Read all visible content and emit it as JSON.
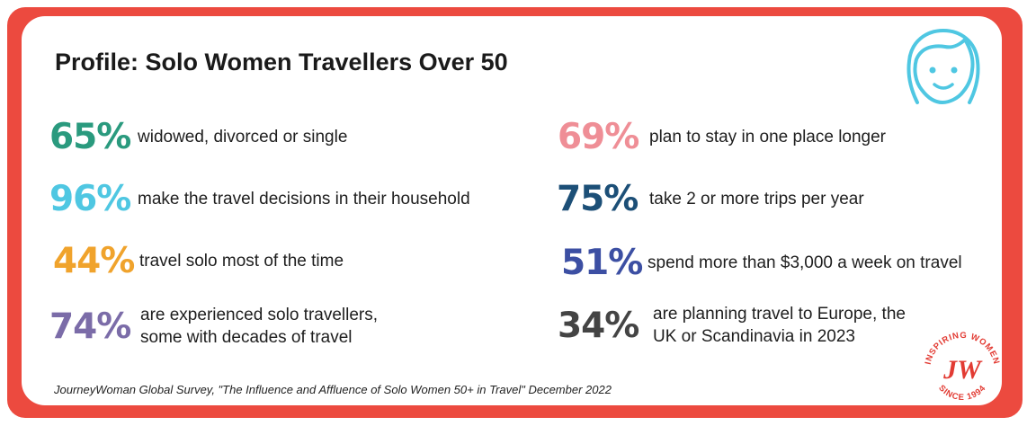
{
  "title": "Profile: Solo Women Travellers Over 50",
  "colors": {
    "frame": "#ec4a3f",
    "teal": "#2a9a7e",
    "sky": "#4fc7e2",
    "orange": "#f0a32c",
    "purple": "#7b6ca8",
    "pink": "#ef8e96",
    "navy": "#1c4f77",
    "indigo": "#3c4fa3",
    "charcoal": "#444444"
  },
  "stats": [
    {
      "pct": "65%",
      "text": [
        "widowed, divorced or single"
      ]
    },
    {
      "pct": "96%",
      "text": [
        "make the travel decisions  in their household"
      ]
    },
    {
      "pct": "44%",
      "text": [
        "travel solo most of the time"
      ]
    },
    {
      "pct": "74%",
      "text": [
        "are experienced solo travellers,",
        "some with decades of travel"
      ]
    },
    {
      "pct": "69%",
      "text": [
        "plan to stay in one place longer"
      ]
    },
    {
      "pct": "75%",
      "text": [
        "take 2 or more trips per year"
      ]
    },
    {
      "pct": "51%",
      "text": [
        "spend more than $3,000 a week on travel"
      ]
    },
    {
      "pct": "34%",
      "text": [
        "are planning travel to Europe, the",
        "UK or Scandinavia in 2023"
      ]
    }
  ],
  "source": "JourneyWoman Global Survey, \"The Influence and Affluence of Solo Women 50+ in Travel\" December 2022",
  "icons": {
    "face": "smiling-woman-face-icon",
    "logo": "journeywoman-logo"
  },
  "logo": {
    "top_text": "INSPIRING WOMEN",
    "monogram": "JW",
    "bottom_text": "SINCE 1994"
  }
}
